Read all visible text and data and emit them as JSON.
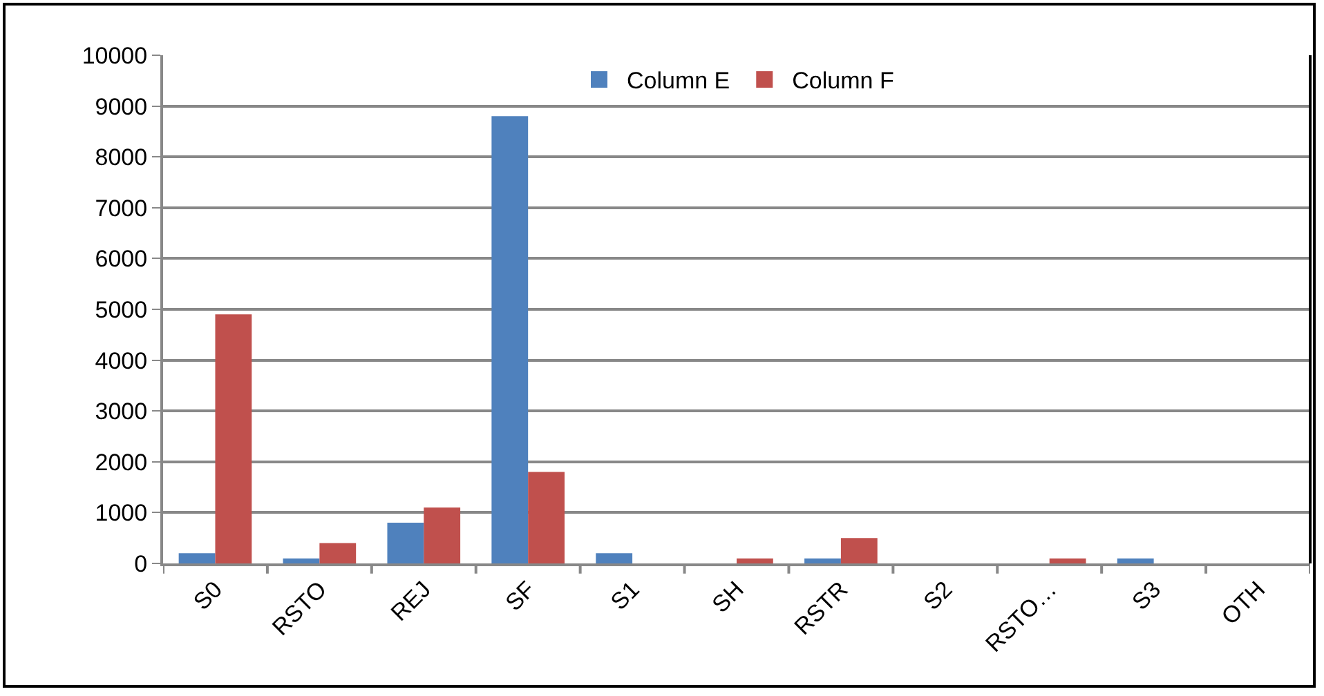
{
  "chart_data": {
    "type": "bar",
    "categories": [
      "S0",
      "RSTO",
      "REJ",
      "SF",
      "S1",
      "SH",
      "RSTR",
      "S2",
      "RSTO…",
      "S3",
      "OTH"
    ],
    "series": [
      {
        "name": "Column E",
        "color": "#4f81bd",
        "values": [
          200,
          100,
          800,
          8800,
          200,
          0,
          100,
          0,
          0,
          100,
          0
        ]
      },
      {
        "name": "Column F",
        "color": "#c0504d",
        "values": [
          4900,
          400,
          1100,
          1800,
          0,
          100,
          500,
          0,
          100,
          0,
          0
        ]
      }
    ],
    "ylim": [
      0,
      10000
    ],
    "yticks": [
      0,
      1000,
      2000,
      3000,
      4000,
      5000,
      6000,
      7000,
      8000,
      9000,
      10000
    ],
    "grid": "y",
    "legend": "top"
  }
}
